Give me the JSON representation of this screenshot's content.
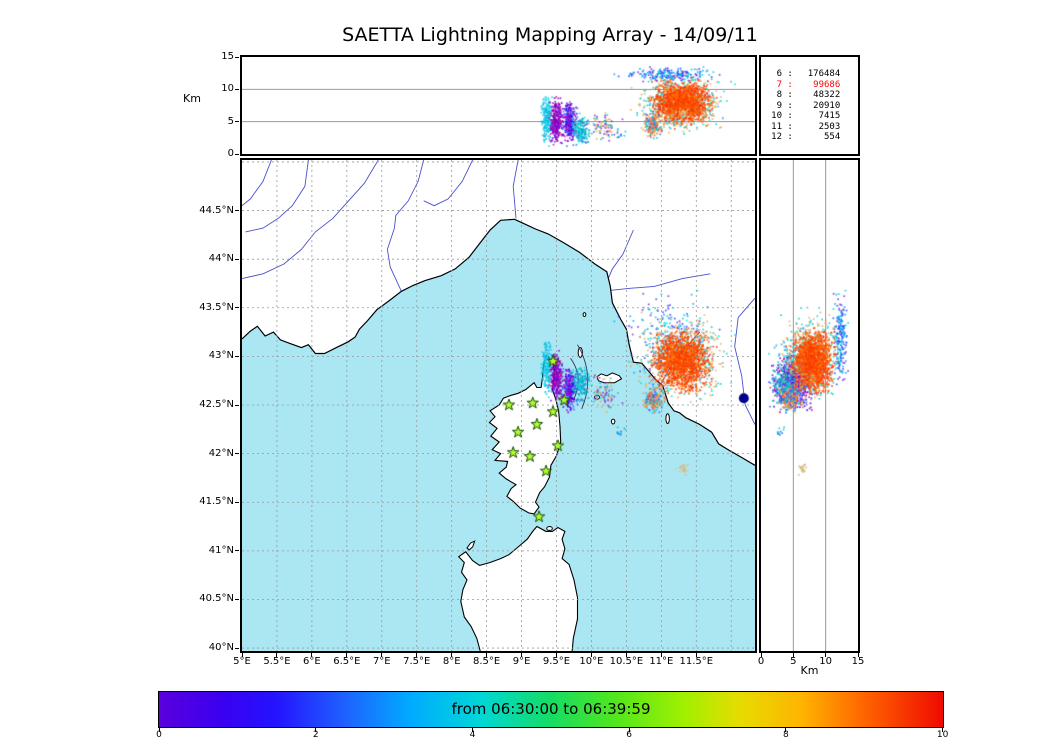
{
  "title": "SAETTA Lightning Mapping Array - 14/09/11",
  "axes": {
    "alt_panel": {
      "ylabel": "Km",
      "ylim": [
        0,
        15
      ],
      "yticks": [
        0,
        5,
        10,
        15
      ],
      "ytick_labels": [
        "0",
        "5",
        "10",
        "15"
      ],
      "grid_y": [
        5,
        10
      ]
    },
    "map": {
      "lon_lim": [
        5,
        12.34
      ],
      "lat_lim": [
        39.97,
        45.02
      ],
      "lon_ticks": [
        5,
        5.5,
        6,
        6.5,
        7,
        7.5,
        8,
        8.5,
        9,
        9.5,
        10,
        10.5,
        11,
        11.5
      ],
      "lon_labels": [
        "5°E",
        "5.5°E",
        "6°E",
        "6.5°E",
        "7°E",
        "7.5°E",
        "8°E",
        "8.5°E",
        "9°E",
        "9.5°E",
        "10°E",
        "10.5°E",
        "11°E",
        "11.5°E"
      ],
      "lat_ticks": [
        44.5,
        44,
        43.5,
        43,
        42.5,
        42,
        41.5,
        41,
        40.5,
        40
      ],
      "lat_labels": [
        "44.5°N",
        "44°N",
        "43.5°N",
        "43°N",
        "42.5°N",
        "42°N",
        "41.5°N",
        "41°N",
        "40.5°N",
        "40°N"
      ]
    },
    "right_panel": {
      "xlabel": "Km",
      "xlim": [
        0,
        15
      ],
      "xticks": [
        0,
        5,
        10,
        15
      ],
      "xtick_labels": [
        "0",
        "5",
        "10",
        "15"
      ],
      "grid_x": [
        5,
        10
      ]
    }
  },
  "counts_panel": {
    "rows": [
      {
        "level": "6",
        "value": "176484"
      },
      {
        "level": "7",
        "value": "99686"
      },
      {
        "level": "8",
        "value": "48322"
      },
      {
        "level": "9",
        "value": "20910"
      },
      {
        "level": "10",
        "value": "7415"
      },
      {
        "level": "11",
        "value": "2503"
      },
      {
        "level": "12",
        "value": "554"
      }
    ],
    "highlight_row": 1,
    "highlight_color": "#ff0000"
  },
  "colorbar": {
    "label": "from 06:30:00 to 06:39:59",
    "lim": [
      0,
      10
    ],
    "ticks": [
      0,
      2,
      4,
      6,
      8,
      10
    ],
    "tick_labels": [
      "0",
      "2",
      "4",
      "6",
      "8",
      "10"
    ],
    "stops": [
      [
        "#5a00dc",
        0
      ],
      [
        "#3a00f0",
        8
      ],
      [
        "#2414ff",
        15
      ],
      [
        "#1e64ff",
        24
      ],
      [
        "#00aaff",
        32
      ],
      [
        "#00d7d7",
        41
      ],
      [
        "#16dc64",
        50
      ],
      [
        "#50e61e",
        58
      ],
      [
        "#a0f000",
        67
      ],
      [
        "#e6dc00",
        74
      ],
      [
        "#ffb400",
        82
      ],
      [
        "#ff6400",
        90
      ],
      [
        "#f00a00",
        100
      ]
    ]
  },
  "colors": {
    "sea": "#abe7f3",
    "land": "#ffffff",
    "coast": "#000000",
    "river": "#4850d0",
    "grid": "#999999",
    "panel_grid": "#9a9a9a",
    "station_fill": "#adff2f",
    "station_edge": "#1a4a00"
  },
  "chart_data": {
    "type": "scatter",
    "title": "SAETTA Lightning Mapping Array - 14/09/11",
    "panels": [
      {
        "name": "altitude-vs-longitude",
        "x": "longitude_deg_E",
        "xlim": [
          5,
          12.34
        ],
        "y": "altitude_km",
        "ylim": [
          0,
          15
        ],
        "ylabel": "Km",
        "grid_lines_y_km": [
          5,
          10
        ]
      },
      {
        "name": "plan-view-map",
        "x": "longitude_deg_E",
        "xlim": [
          5,
          12.34
        ],
        "y": "latitude_deg_N",
        "ylim": [
          39.97,
          45.02
        ],
        "grid": "dashed every 0.5 deg"
      },
      {
        "name": "altitude-vs-latitude",
        "x": "altitude_km",
        "xlim": [
          0,
          15
        ],
        "xlabel": "Km",
        "y": "latitude_deg_N",
        "ylim": [
          39.97,
          45.02
        ],
        "grid_lines_x_km": [
          5,
          10
        ]
      }
    ],
    "time_window": {
      "label": "from 06:30:00 to 06:39:59",
      "colorbar_range": [
        0,
        10
      ],
      "colorbar_ticks": [
        0,
        2,
        4,
        6,
        8,
        10
      ]
    },
    "lightning_clusters": [
      {
        "name": "corsica-cell-cyan",
        "center_lon": 9.36,
        "center_lat": 42.88,
        "center_alt_km": 5.5,
        "spread_lon": 0.035,
        "spread_lat": 0.12,
        "spread_alt_km": 1.5,
        "n_points": 220,
        "colors": [
          "#00dce6",
          "#00aadc",
          "#30c8ee"
        ]
      },
      {
        "name": "corsica-cell-purple",
        "center_lon": 9.5,
        "center_lat": 42.8,
        "center_alt_km": 5.2,
        "spread_lon": 0.04,
        "spread_lat": 0.1,
        "spread_alt_km": 1.5,
        "n_points": 280,
        "colors": [
          "#7a00e6",
          "#9400d3",
          "#c71585",
          "#5a00c8"
        ]
      },
      {
        "name": "corsica-cell-blue",
        "center_lon": 9.68,
        "center_lat": 42.66,
        "center_alt_km": 4.8,
        "spread_lon": 0.045,
        "spread_lat": 0.1,
        "spread_alt_km": 1.4,
        "n_points": 280,
        "colors": [
          "#2800e6",
          "#6400e6",
          "#b400c8",
          "#3c64ff"
        ]
      },
      {
        "name": "corsica-cell-teal",
        "center_lon": 9.84,
        "center_lat": 42.72,
        "center_alt_km": 3.8,
        "spread_lon": 0.05,
        "spread_lat": 0.08,
        "spread_alt_km": 1.0,
        "n_points": 160,
        "colors": [
          "#00b4c8",
          "#1e78e6",
          "#00dcc8"
        ]
      },
      {
        "name": "mid-sea-specks",
        "center_lon": 10.18,
        "center_lat": 42.62,
        "center_alt_km": 4.0,
        "spread_lon": 0.1,
        "spread_lat": 0.08,
        "spread_alt_km": 0.9,
        "n_points": 90,
        "colors": [
          "#ffa030",
          "#00c8c8",
          "#8a2be2",
          "#d2b48c"
        ]
      },
      {
        "name": "storm-anvil-top",
        "center_lon": 11.15,
        "center_lat": 43.18,
        "center_alt_km": 12.3,
        "spread_lon": 0.3,
        "spread_lat": 0.2,
        "spread_alt_km": 0.5,
        "n_points": 200,
        "colors": [
          "#2846ff",
          "#00a0ff",
          "#7030e0",
          "#00d0e0"
        ]
      },
      {
        "name": "storm-halo",
        "center_lon": 11.28,
        "center_lat": 42.98,
        "center_alt_km": 7.6,
        "spread_lon": 0.27,
        "spread_lat": 0.19,
        "spread_alt_km": 1.8,
        "n_points": 650,
        "colors": [
          "#00c8c8",
          "#d2b48c",
          "#50b4f0",
          "#c8b464",
          "#00e0d2",
          "#ffa040"
        ]
      },
      {
        "name": "storm-core",
        "center_lon": 11.3,
        "center_lat": 42.95,
        "center_alt_km": 8.0,
        "spread_lon": 0.18,
        "spread_lat": 0.13,
        "spread_alt_km": 1.4,
        "n_points": 1500,
        "colors": [
          "#ff4600",
          "#ff5a00",
          "#ff3200",
          "#ff7800",
          "#f03c00"
        ]
      },
      {
        "name": "sw-cell",
        "center_lon": 10.88,
        "center_lat": 42.56,
        "center_alt_km": 4.5,
        "spread_lon": 0.07,
        "spread_lat": 0.06,
        "spread_alt_km": 0.9,
        "n_points": 180,
        "colors": [
          "#ff5a28",
          "#00c8d2",
          "#ff9632",
          "#3c64ff"
        ]
      },
      {
        "name": "south-speck",
        "center_lon": 11.3,
        "center_lat": 41.85,
        "center_alt_km": 6.4,
        "spread_lon": 0.035,
        "spread_lat": 0.03,
        "spread_alt_km": 0.3,
        "n_points": 25,
        "colors": [
          "#d2b48c",
          "#dcc878"
        ]
      },
      {
        "name": "tiny-specks",
        "center_lon": 10.42,
        "center_lat": 42.22,
        "center_alt_km": 3.0,
        "spread_lon": 0.03,
        "spread_lat": 0.03,
        "spread_alt_km": 0.4,
        "n_points": 10,
        "colors": [
          "#2864ff",
          "#00c8d2"
        ]
      }
    ],
    "stations_lonlat": [
      [
        9.45,
        42.95
      ],
      [
        8.82,
        42.5
      ],
      [
        9.16,
        42.52
      ],
      [
        9.45,
        42.43
      ],
      [
        9.61,
        42.55
      ],
      [
        8.95,
        42.22
      ],
      [
        9.22,
        42.3
      ],
      [
        8.88,
        42.01
      ],
      [
        9.12,
        41.97
      ],
      [
        9.52,
        42.08
      ],
      [
        9.35,
        41.82
      ],
      [
        9.25,
        41.35
      ]
    ],
    "extra_marker": {
      "lonlat": [
        12.18,
        42.57
      ],
      "color": "#00008b"
    }
  }
}
